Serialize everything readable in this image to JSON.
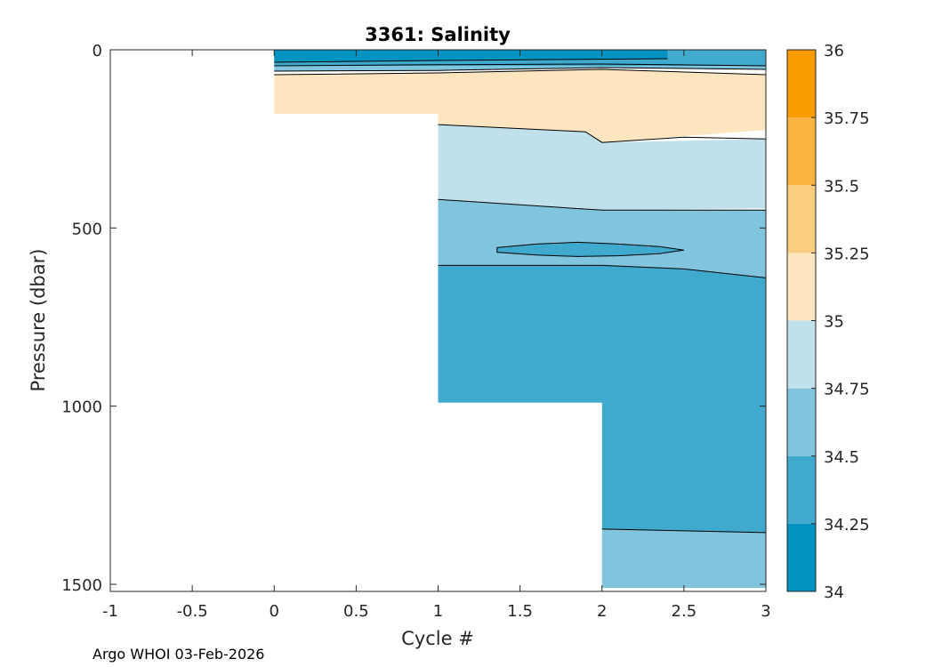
{
  "chart_data": {
    "type": "contour",
    "title": "3361:  Salinity",
    "xlabel": "Cycle #",
    "ylabel": "Pressure (dbar)",
    "xlim": [
      -1,
      3
    ],
    "ylim": [
      0,
      1520
    ],
    "y_reversed": true,
    "x_ticks": [
      -1,
      -0.5,
      0,
      0.5,
      1,
      1.5,
      2,
      2.5,
      3
    ],
    "x_tick_labels": [
      "-1",
      "-0.5",
      "0",
      "0.5",
      "1",
      "1.5",
      "2",
      "2.5",
      "3"
    ],
    "y_ticks": [
      0,
      500,
      1000,
      1500
    ],
    "y_tick_labels": [
      "0",
      "500",
      "1000",
      "1500"
    ],
    "profiles": [
      {
        "cycle": 0,
        "max_pressure": 180
      },
      {
        "cycle": 1,
        "max_pressure": 990
      },
      {
        "cycle": 2,
        "max_pressure": 1510
      },
      {
        "cycle": 3,
        "max_pressure": 1510
      }
    ],
    "colorbar": {
      "levels": [
        34,
        34.25,
        34.5,
        34.75,
        35,
        35.25,
        35.5,
        35.75,
        36
      ],
      "tick_labels": [
        "34",
        "34.25",
        "34.5",
        "34.75",
        "35",
        "35.25",
        "35.5",
        "35.75",
        "36"
      ],
      "colors": [
        "#0093c0",
        "#40a9ce",
        "#80c5dd",
        "#c0e1ec",
        "#fde6bf",
        "#fbce7f",
        "#fab540",
        "#f99c00"
      ]
    },
    "regions": [
      {
        "name": "band-34.25-34.5-top",
        "level": 34.25,
        "points": [
          [
            0,
            0
          ],
          [
            3,
            0
          ],
          [
            3,
            45
          ],
          [
            0,
            45
          ]
        ]
      },
      {
        "name": "band-34-34.25-surface",
        "level": 34.0,
        "points": [
          [
            0,
            0
          ],
          [
            2.4,
            0
          ],
          [
            2.4,
            25
          ],
          [
            1.0,
            30
          ],
          [
            0,
            35
          ]
        ]
      },
      {
        "name": "band-34.5-34.75-upper",
        "level": 34.5,
        "points": [
          [
            0,
            45
          ],
          [
            3,
            45
          ],
          [
            3,
            55
          ],
          [
            2,
            50
          ],
          [
            1,
            58
          ],
          [
            0,
            60
          ]
        ]
      },
      {
        "name": "band-35-35.25-warm",
        "level": 35.0,
        "points": [
          [
            0,
            70
          ],
          [
            1,
            65
          ],
          [
            2,
            55
          ],
          [
            3,
            70
          ],
          [
            3,
            225
          ],
          [
            2,
            260
          ],
          [
            1,
            225
          ],
          [
            1,
            180
          ],
          [
            0,
            180
          ]
        ]
      },
      {
        "name": "band-34.75-35-mid",
        "level": 34.75,
        "points": [
          [
            1,
            210
          ],
          [
            1.9,
            230
          ],
          [
            2,
            260
          ],
          [
            3,
            250
          ],
          [
            3,
            445
          ],
          [
            2,
            450
          ],
          [
            1,
            420
          ]
        ]
      },
      {
        "name": "band-34.5-34.75-mid",
        "level": 34.5,
        "points": [
          [
            1,
            420
          ],
          [
            2,
            450
          ],
          [
            3,
            450
          ],
          [
            3,
            640
          ],
          [
            2.5,
            615
          ],
          [
            2,
            605
          ],
          [
            1,
            605
          ]
        ]
      },
      {
        "name": "band-34.25-34.5-deep",
        "level": 34.25,
        "points": [
          [
            1,
            605
          ],
          [
            2,
            605
          ],
          [
            2.5,
            615
          ],
          [
            3,
            640
          ],
          [
            3,
            1355
          ],
          [
            2.5,
            1350
          ],
          [
            2,
            1345
          ],
          [
            2,
            990
          ],
          [
            1,
            990
          ]
        ]
      },
      {
        "name": "lens-34.25-34.5",
        "level": 34.25,
        "points": [
          [
            1.36,
            555
          ],
          [
            1.6,
            545
          ],
          [
            1.85,
            540
          ],
          [
            2.1,
            545
          ],
          [
            2.35,
            552
          ],
          [
            2.5,
            562
          ],
          [
            2.35,
            572
          ],
          [
            2.1,
            578
          ],
          [
            1.85,
            580
          ],
          [
            1.6,
            576
          ],
          [
            1.36,
            568
          ]
        ]
      },
      {
        "name": "band-34.5-34.75-bottom",
        "level": 34.5,
        "points": [
          [
            2,
            1345
          ],
          [
            3,
            1355
          ],
          [
            3,
            1510
          ],
          [
            2,
            1510
          ]
        ]
      }
    ],
    "contour_lines": [
      [
        [
          0,
          35
        ],
        [
          1,
          30
        ],
        [
          2.4,
          25
        ]
      ],
      [
        [
          0,
          45
        ],
        [
          1,
          42
        ],
        [
          2,
          40
        ],
        [
          3,
          45
        ]
      ],
      [
        [
          0,
          60
        ],
        [
          1,
          58
        ],
        [
          2,
          50
        ],
        [
          3,
          55
        ]
      ],
      [
        [
          0,
          70
        ],
        [
          1,
          65
        ],
        [
          2,
          55
        ],
        [
          3,
          70
        ]
      ],
      [
        [
          1,
          210
        ],
        [
          1.9,
          230
        ],
        [
          2,
          260
        ],
        [
          2.5,
          245
        ],
        [
          3,
          250
        ]
      ],
      [
        [
          1,
          420
        ],
        [
          2,
          450
        ],
        [
          3,
          450
        ]
      ],
      [
        [
          1,
          605
        ],
        [
          2,
          605
        ],
        [
          2.5,
          615
        ],
        [
          3,
          640
        ]
      ],
      [
        [
          2,
          1345
        ],
        [
          2.5,
          1350
        ],
        [
          3,
          1355
        ]
      ]
    ],
    "footer": "Argo WHOI 03-Feb-2026"
  }
}
